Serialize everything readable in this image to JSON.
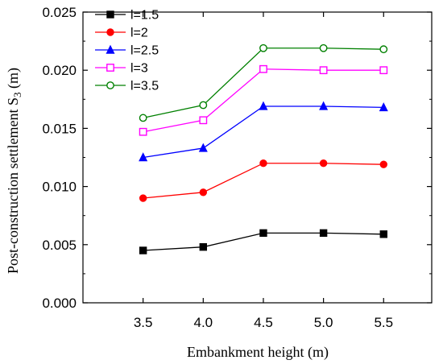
{
  "chart_data": {
    "type": "line",
    "xlabel": "Embankment height (m)",
    "ylabel": "Post-construction settlement S",
    "ylabel_sub": "3",
    "ylabel_unit": " (m)",
    "x": [
      3.5,
      4.0,
      4.5,
      5.0,
      5.5
    ],
    "x_tick_labels": [
      "3.5",
      "4.0",
      "4.5",
      "5.0",
      "5.5"
    ],
    "xlim": [
      3.0,
      5.9
    ],
    "ylim": [
      0.0,
      0.025
    ],
    "y_ticks": [
      0.0,
      0.005,
      0.01,
      0.015,
      0.02,
      0.025
    ],
    "y_tick_labels": [
      "0.000",
      "0.005",
      "0.010",
      "0.015",
      "0.020",
      "0.025"
    ],
    "grid": false,
    "legend_position": "top-left",
    "series": [
      {
        "name": "l=1.5",
        "color": "#000000",
        "marker": "square-filled",
        "values": [
          0.0045,
          0.0048,
          0.006,
          0.006,
          0.0059
        ]
      },
      {
        "name": "l=2",
        "color": "#ff0000",
        "marker": "circle-filled",
        "values": [
          0.009,
          0.0095,
          0.012,
          0.012,
          0.0119
        ]
      },
      {
        "name": "l=2.5",
        "color": "#0000ff",
        "marker": "triangle-filled",
        "values": [
          0.0125,
          0.0133,
          0.0169,
          0.0169,
          0.0168
        ]
      },
      {
        "name": "l=3",
        "color": "#ff00ff",
        "marker": "square-open",
        "values": [
          0.0147,
          0.0157,
          0.0201,
          0.02,
          0.02
        ]
      },
      {
        "name": "l=3.5",
        "color": "#008000",
        "marker": "circle-open",
        "values": [
          0.0159,
          0.017,
          0.0219,
          0.0219,
          0.0218
        ]
      }
    ]
  }
}
